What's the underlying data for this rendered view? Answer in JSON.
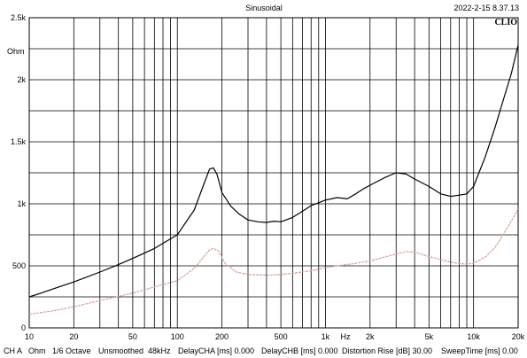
{
  "header": {
    "title": "Sinusoidal",
    "timestamp": "2022-2-15 8.37.13",
    "logo": "CLIO"
  },
  "footer": {
    "channel": "CH A",
    "unit": "Ohm",
    "smoothing": "1/6 Octave",
    "mode": "Unsmoothed",
    "rate": "48kHz",
    "delay_a": "DelayCHA [ms] 0.000",
    "delay_b": "DelayCHB [ms] 0.000",
    "distortion": "Distortion Rise [dB] 30.00",
    "sweep": "SweepTime [ms] 0.00"
  },
  "chart_data": {
    "type": "line",
    "x_scale": "log",
    "xlim": [
      10,
      20000
    ],
    "ylim": [
      0,
      2500
    ],
    "grid": true,
    "xlabel": "Hz",
    "ylabel": "Ohm",
    "x_ticks": [
      {
        "value": 10,
        "label": "10"
      },
      {
        "value": 20,
        "label": "20"
      },
      {
        "value": 50,
        "label": "50"
      },
      {
        "value": 100,
        "label": "100"
      },
      {
        "value": 200,
        "label": "200"
      },
      {
        "value": 500,
        "label": "500"
      },
      {
        "value": 1000,
        "label": "1k"
      },
      {
        "value": 2000,
        "label": "2k"
      },
      {
        "value": 5000,
        "label": "5k"
      },
      {
        "value": 10000,
        "label": "10k"
      },
      {
        "value": 20000,
        "label": "20k"
      }
    ],
    "y_ticks": [
      {
        "value": 0,
        "label": "0"
      },
      {
        "value": 500,
        "label": "500"
      },
      {
        "value": 1000,
        "label": "1k"
      },
      {
        "value": 1500,
        "label": "1.5k"
      },
      {
        "value": 2000,
        "label": "2k"
      },
      {
        "value": 2500,
        "label": "2.5k"
      }
    ],
    "series": [
      {
        "color": "#000000",
        "x": [
          10,
          12,
          15,
          20,
          30,
          40,
          50,
          70,
          100,
          130,
          150,
          165,
          175,
          185,
          200,
          230,
          260,
          300,
          350,
          400,
          450,
          500,
          600,
          700,
          800,
          1000,
          1200,
          1400,
          1600,
          1800,
          2000,
          2500,
          3000,
          3500,
          4000,
          5000,
          6000,
          7000,
          8000,
          9000,
          10000,
          12000,
          14000,
          16000,
          18000,
          20000
        ],
        "y": [
          250,
          280,
          320,
          370,
          450,
          510,
          560,
          640,
          750,
          950,
          1150,
          1280,
          1290,
          1240,
          1090,
          980,
          920,
          870,
          855,
          850,
          860,
          855,
          890,
          940,
          985,
          1030,
          1050,
          1040,
          1080,
          1120,
          1150,
          1210,
          1250,
          1240,
          1200,
          1140,
          1080,
          1060,
          1070,
          1080,
          1140,
          1380,
          1620,
          1850,
          2050,
          2280
        ]
      },
      {
        "color": "#d9a09a",
        "x": [
          10,
          15,
          20,
          30,
          50,
          70,
          100,
          130,
          150,
          165,
          175,
          190,
          210,
          250,
          300,
          400,
          500,
          600,
          800,
          1000,
          1200,
          1500,
          2000,
          2500,
          3000,
          3500,
          4000,
          5000,
          6000,
          7000,
          8000,
          9000,
          10000,
          12000,
          14000,
          16000,
          18000,
          20000
        ],
        "y": [
          110,
          140,
          170,
          220,
          280,
          330,
          380,
          480,
          570,
          630,
          640,
          620,
          520,
          450,
          430,
          425,
          430,
          440,
          460,
          485,
          500,
          515,
          540,
          570,
          595,
          615,
          610,
          575,
          550,
          530,
          518,
          515,
          520,
          570,
          650,
          760,
          860,
          960
        ]
      }
    ]
  }
}
